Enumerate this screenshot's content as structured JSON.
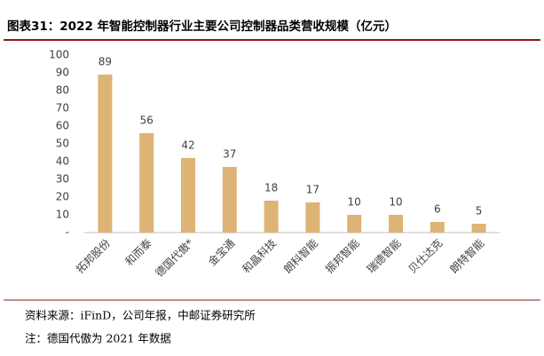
{
  "chart_data": {
    "type": "bar",
    "title": "图表31：2022 年智能控制器行业主要公司控制器品类营收规模（亿元）",
    "categories": [
      "拓邦股份",
      "和而泰",
      "德国代傲*",
      "金宝通",
      "和晶科技",
      "朗科智能",
      "振邦智能",
      "瑞德智能",
      "贝仕达克",
      "朗特智能"
    ],
    "values": [
      89,
      56,
      42,
      37,
      18,
      17,
      10,
      10,
      6,
      5
    ],
    "color": "#ddb476",
    "ylim": [
      0,
      100
    ],
    "yticks": [
      {
        "value": 0,
        "label": "-"
      },
      10,
      20,
      30,
      40,
      50,
      60,
      70,
      80,
      90,
      100
    ],
    "grid": false
  },
  "source": "资料来源：iFinD，公司年报，中邮证券研究所",
  "note": "注：德国代傲为 2021 年数据"
}
